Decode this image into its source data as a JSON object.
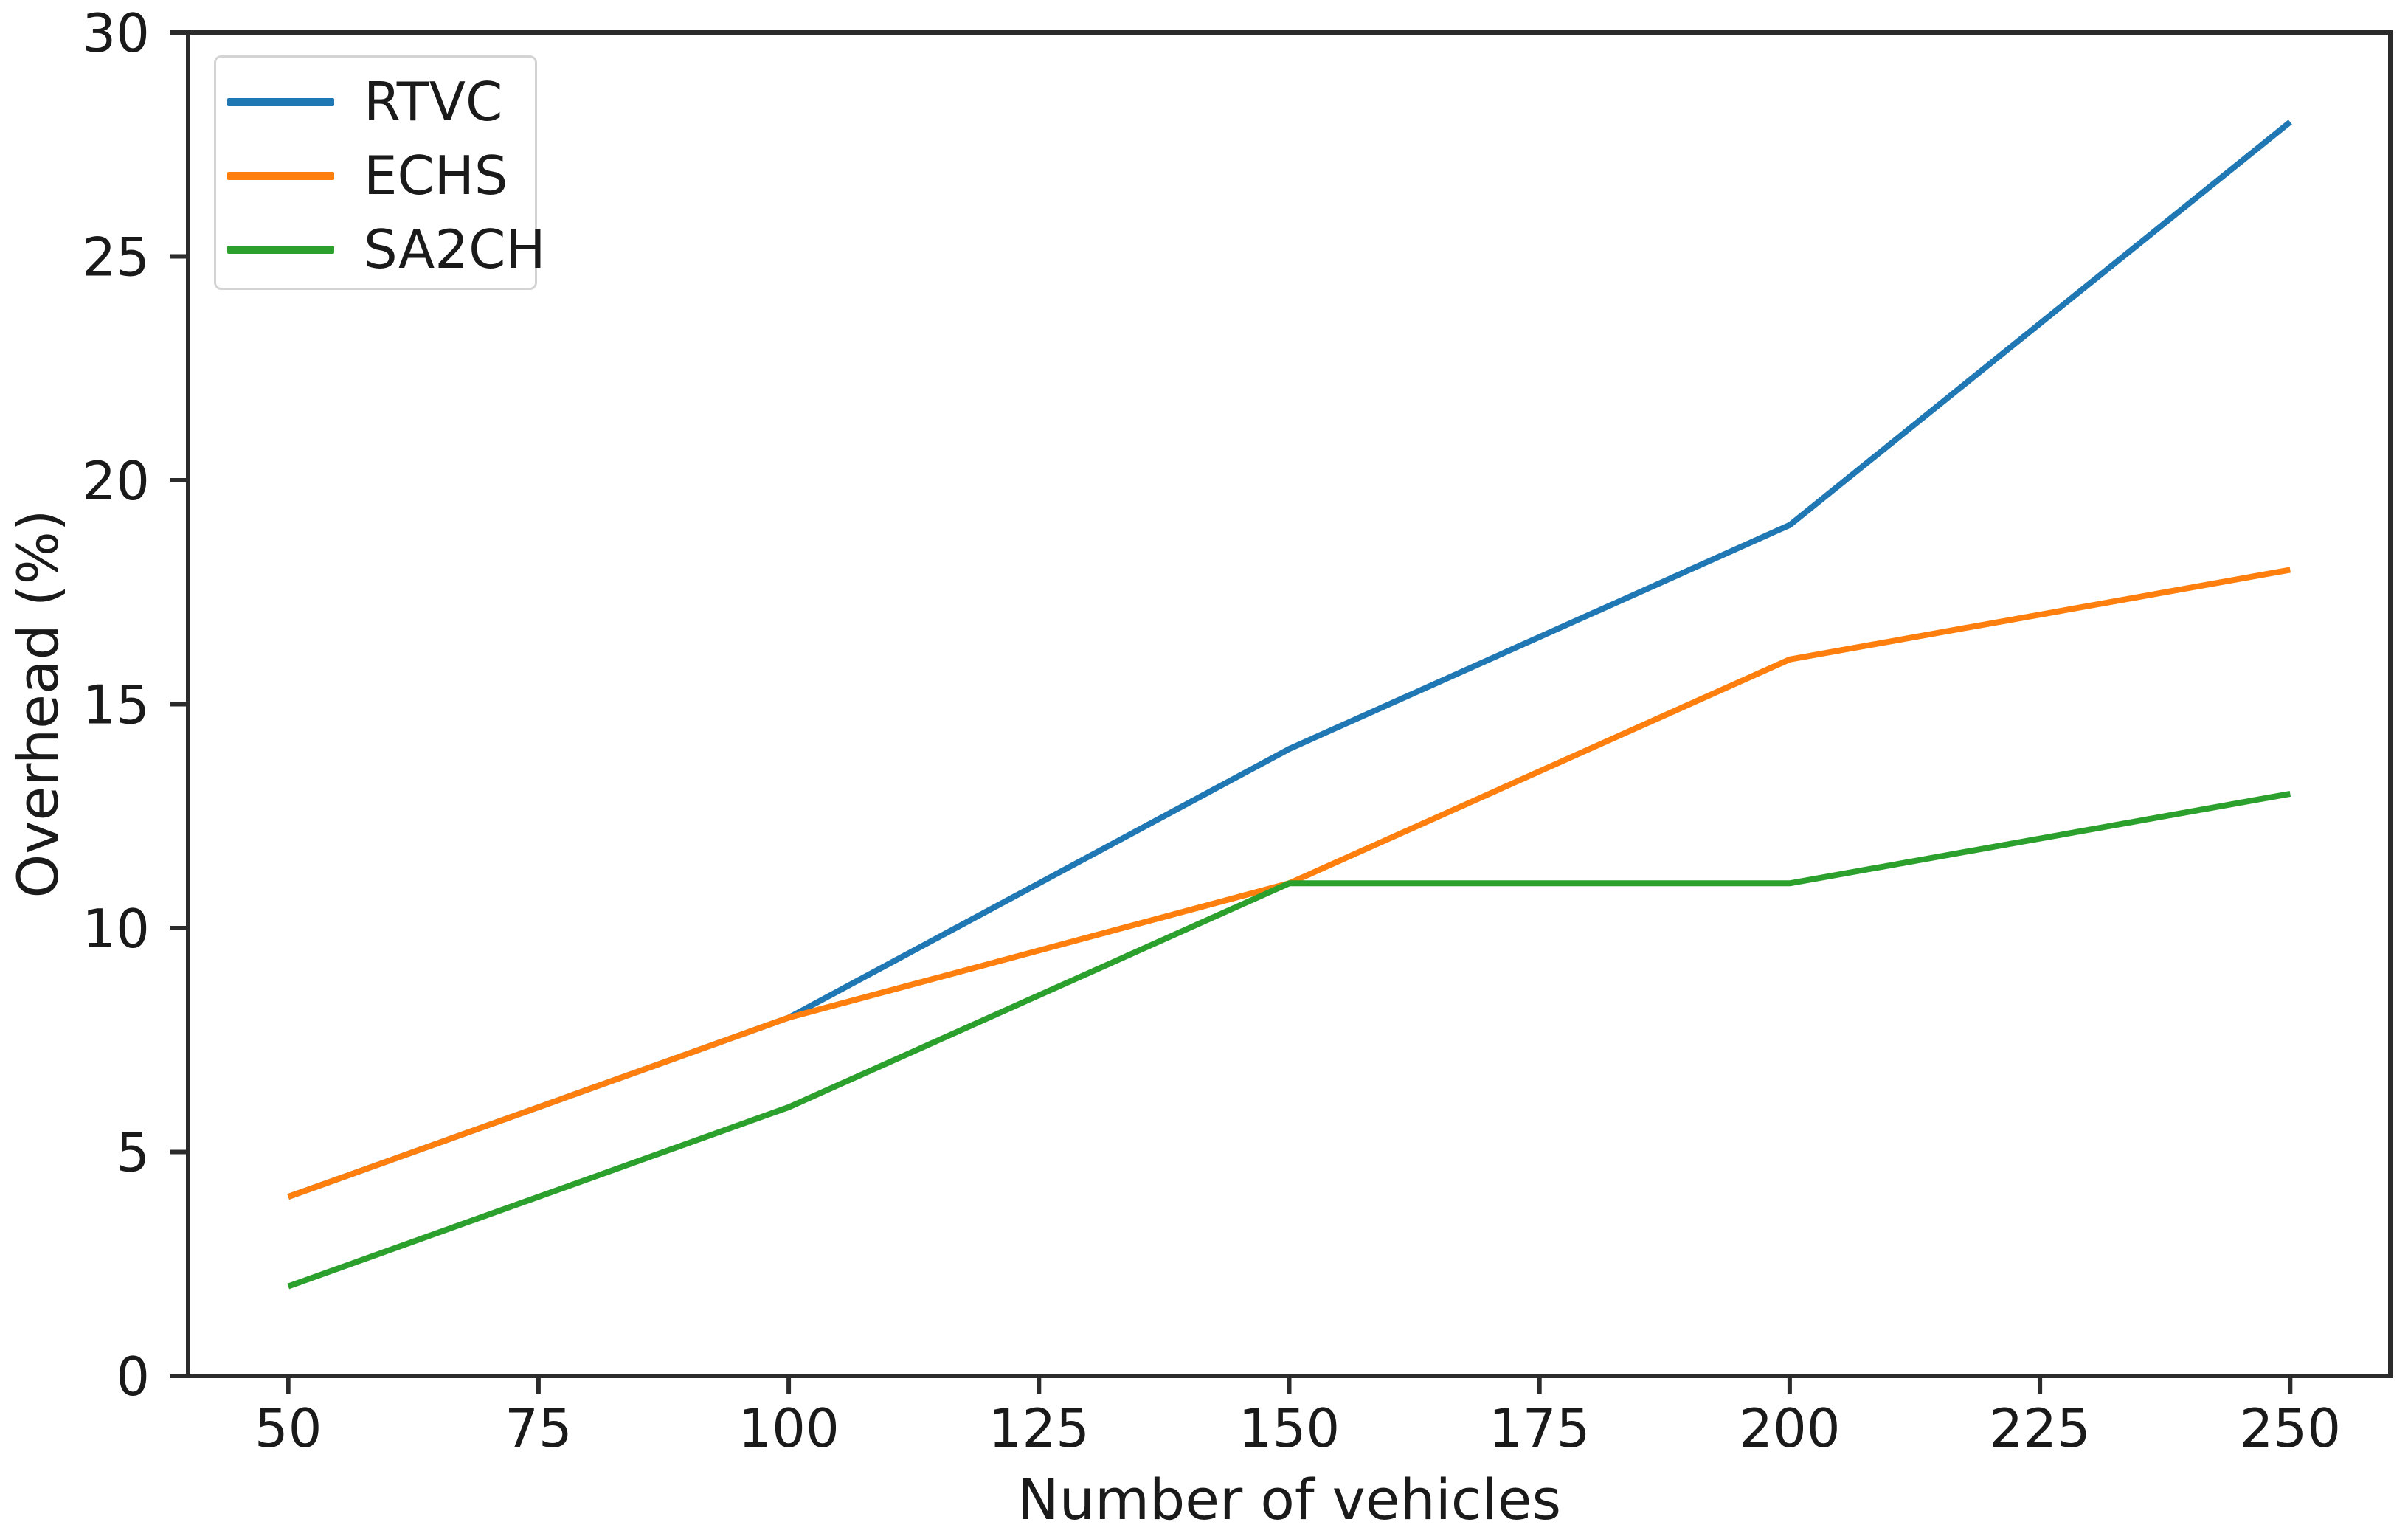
{
  "figure": {
    "background": "#ffffff",
    "text_color": "#1a1a1a",
    "spine_color": "#2b2b2b"
  },
  "chart_data": {
    "type": "line",
    "title": "",
    "xlabel": "Number of vehicles",
    "ylabel": "Overhead (%)",
    "x": [
      50,
      100,
      150,
      200,
      250
    ],
    "series": [
      {
        "name": "RTVC",
        "color": "#1f77b4",
        "values": [
          4,
          8,
          14,
          19,
          28
        ]
      },
      {
        "name": "ECHS",
        "color": "#ff7f0e",
        "values": [
          4,
          8,
          11,
          16,
          18
        ]
      },
      {
        "name": "SA2CH",
        "color": "#2ca02c",
        "values": [
          2,
          6,
          11,
          11,
          13
        ]
      }
    ],
    "xlim": [
      40,
      260
    ],
    "ylim": [
      0,
      30
    ],
    "xticks": [
      50,
      75,
      100,
      125,
      150,
      175,
      200,
      225,
      250
    ],
    "yticks": [
      0,
      5,
      10,
      15,
      20,
      25,
      30
    ],
    "grid": false,
    "legend_position": "upper-left"
  }
}
